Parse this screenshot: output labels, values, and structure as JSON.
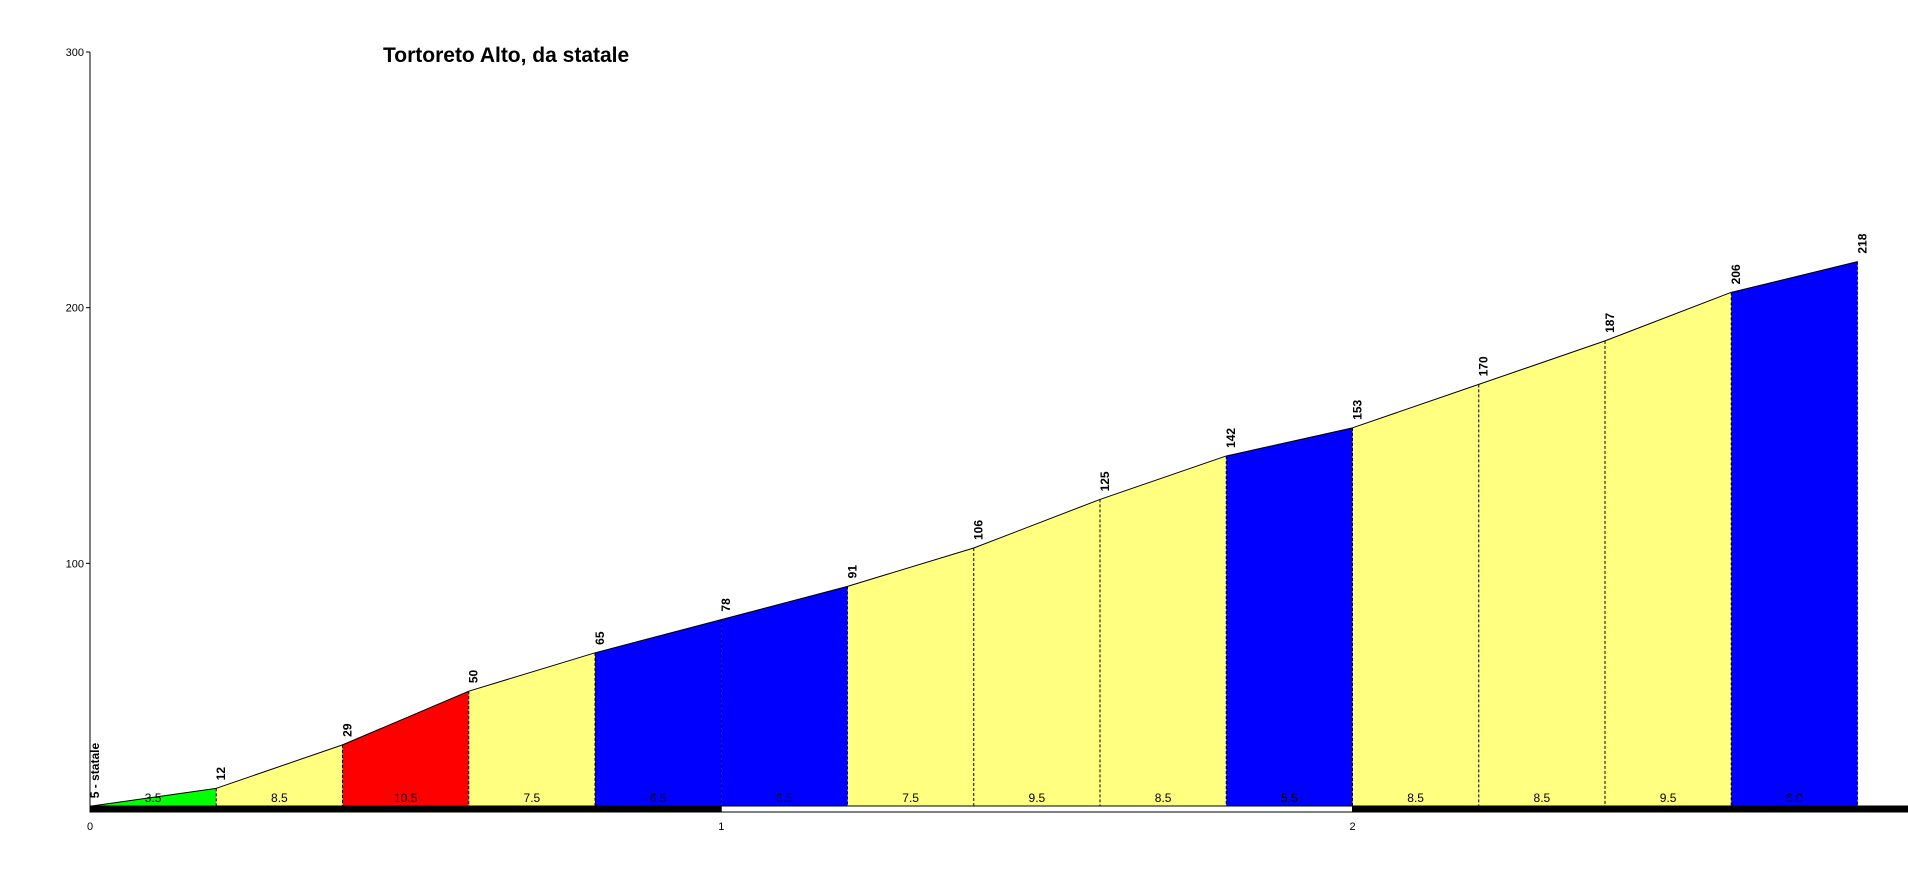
{
  "chart_data": {
    "type": "area",
    "title": "Tortoreto Alto, da  statale",
    "x": [
      0,
      0.2,
      0.4,
      0.6,
      0.8,
      1.0,
      1.2,
      1.4,
      1.6,
      1.8,
      2.0,
      2.2,
      2.4,
      2.6,
      2.8
    ],
    "values": [
      5,
      12,
      29,
      50,
      65,
      78,
      91,
      106,
      125,
      142,
      153,
      170,
      187,
      206,
      218
    ],
    "value_labels": [
      "5 - statale",
      "12",
      "29",
      "50",
      "65",
      "78",
      "91",
      "106",
      "125",
      "142",
      "153",
      "170",
      "187",
      "206",
      "218"
    ],
    "gradients": [
      3.5,
      8.5,
      10.5,
      7.5,
      6.5,
      6.5,
      7.5,
      9.5,
      8.5,
      5.5,
      8.5,
      8.5,
      9.5,
      6.0
    ],
    "gradient_labels": [
      "3.5",
      "8.5",
      "10.5",
      "7.5",
      "6.5",
      "6.5",
      "7.5",
      "9.5",
      "8.5",
      "5.5",
      "8.5",
      "8.5",
      "9.5",
      "6.0"
    ],
    "gradient_colors": [
      "#00ff00",
      "#ffff80",
      "#ff0000",
      "#ffff80",
      "#0000ff",
      "#0000ff",
      "#ffff80",
      "#ffff80",
      "#ffff80",
      "#0000ff",
      "#ffff80",
      "#ffff80",
      "#ffff80",
      "#0000ff"
    ],
    "xlim": [
      0,
      2.88
    ],
    "xticks": [
      0,
      1,
      2
    ],
    "ylim": [
      0,
      300
    ],
    "yticks": [
      100,
      200,
      300
    ]
  }
}
